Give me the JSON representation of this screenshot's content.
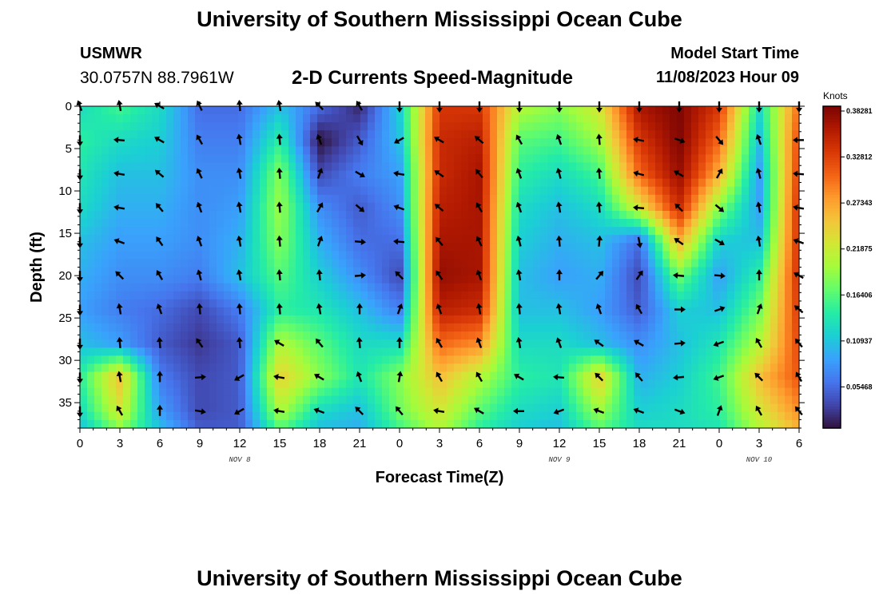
{
  "header": {
    "title": "University of Southern Mississippi Ocean Cube",
    "station": "USMWR",
    "coords": "30.0757N  88.7961W",
    "subtitle": "2-D Currents Speed-Magnitude",
    "model_start_label": "Model Start Time",
    "model_start_time": "11/08/2023 Hour 09"
  },
  "footer": {
    "title": "University of Southern Mississippi Ocean Cube"
  },
  "colors": {
    "scale": [
      "#30123b",
      "#4145ab",
      "#4675ed",
      "#39a2fc",
      "#1bcfd4",
      "#24eca6",
      "#61fc6c",
      "#a4fc3b",
      "#d1e834",
      "#f3c63a",
      "#fe9b2d",
      "#f36315",
      "#d93806",
      "#b11901",
      "#7a0403"
    ],
    "arrow": "#000000"
  },
  "chart_data": {
    "type": "heatmap",
    "title": "2-D Currents Speed-Magnitude",
    "xlabel": "Forecast Time(Z)",
    "ylabel": "Depth (ft)",
    "colorbar_label": "Knots",
    "x_hours": [
      0,
      3,
      6,
      9,
      12,
      15,
      18,
      21,
      24,
      27,
      30,
      33,
      36,
      39,
      42,
      45,
      48,
      51,
      54
    ],
    "x_tick_labels": [
      "0",
      "3",
      "6",
      "9",
      "12",
      "15",
      "18",
      "21",
      "0",
      "3",
      "6",
      "9",
      "12",
      "15",
      "18",
      "21",
      "0",
      "3",
      "6"
    ],
    "date_labels": [
      {
        "hour": 12,
        "label": "NOV 8"
      },
      {
        "hour": 36,
        "label": "NOV 9"
      },
      {
        "hour": 51,
        "label": "NOV 10"
      }
    ],
    "xlim": [
      0,
      54
    ],
    "depths": [
      0,
      4,
      8,
      12,
      16,
      20,
      24,
      28,
      32,
      36,
      38
    ],
    "y_ticks": [
      0,
      5,
      10,
      15,
      20,
      25,
      30,
      35
    ],
    "ylim": [
      0,
      38
    ],
    "colorbar_ticks": [
      "0.38281",
      "0.32812",
      "0.27343",
      "0.21875",
      "0.16406",
      "0.10937",
      "0.05468"
    ],
    "colorbar_range": [
      0.0,
      0.38281
    ],
    "speed_grid": [
      [
        0.12,
        0.15,
        0.12,
        0.05,
        0.05,
        0.1,
        0.05,
        0.01,
        0.11,
        0.33,
        0.33,
        0.2,
        0.18,
        0.22,
        0.36,
        0.38,
        0.33,
        0.12,
        0.3
      ],
      [
        0.14,
        0.12,
        0.11,
        0.06,
        0.06,
        0.14,
        0.0,
        0.04,
        0.1,
        0.34,
        0.35,
        0.16,
        0.15,
        0.19,
        0.33,
        0.38,
        0.3,
        0.1,
        0.32
      ],
      [
        0.13,
        0.1,
        0.1,
        0.07,
        0.07,
        0.18,
        0.03,
        0.06,
        0.08,
        0.34,
        0.36,
        0.14,
        0.12,
        0.15,
        0.3,
        0.37,
        0.26,
        0.08,
        0.33
      ],
      [
        0.12,
        0.09,
        0.09,
        0.07,
        0.08,
        0.19,
        0.07,
        0.04,
        0.07,
        0.35,
        0.36,
        0.12,
        0.1,
        0.12,
        0.22,
        0.34,
        0.18,
        0.08,
        0.34
      ],
      [
        0.1,
        0.08,
        0.08,
        0.07,
        0.09,
        0.18,
        0.09,
        0.05,
        0.05,
        0.36,
        0.36,
        0.11,
        0.09,
        0.1,
        0.05,
        0.26,
        0.11,
        0.1,
        0.34
      ],
      [
        0.09,
        0.07,
        0.07,
        0.06,
        0.1,
        0.16,
        0.11,
        0.07,
        0.03,
        0.37,
        0.36,
        0.1,
        0.08,
        0.09,
        0.03,
        0.17,
        0.08,
        0.14,
        0.34
      ],
      [
        0.08,
        0.06,
        0.05,
        0.03,
        0.06,
        0.14,
        0.13,
        0.1,
        0.06,
        0.35,
        0.34,
        0.1,
        0.1,
        0.08,
        0.04,
        0.11,
        0.1,
        0.17,
        0.33
      ],
      [
        0.1,
        0.08,
        0.04,
        0.02,
        0.04,
        0.2,
        0.16,
        0.12,
        0.12,
        0.3,
        0.28,
        0.12,
        0.12,
        0.1,
        0.07,
        0.1,
        0.13,
        0.2,
        0.32
      ],
      [
        0.14,
        0.25,
        0.06,
        0.03,
        0.04,
        0.24,
        0.18,
        0.13,
        0.18,
        0.25,
        0.2,
        0.14,
        0.13,
        0.24,
        0.09,
        0.11,
        0.15,
        0.25,
        0.31
      ],
      [
        0.12,
        0.22,
        0.08,
        0.03,
        0.04,
        0.2,
        0.12,
        0.1,
        0.17,
        0.22,
        0.16,
        0.12,
        0.11,
        0.19,
        0.11,
        0.12,
        0.14,
        0.22,
        0.28
      ],
      [
        0.1,
        0.18,
        0.1,
        0.04,
        0.04,
        0.16,
        0.1,
        0.09,
        0.15,
        0.2,
        0.14,
        0.11,
        0.1,
        0.16,
        0.12,
        0.12,
        0.13,
        0.2,
        0.26
      ]
    ],
    "arrow_depths": [
      0,
      4,
      8,
      12,
      16,
      20,
      24,
      28,
      32,
      36
    ],
    "arrow_directions_deg": [
      [
        160,
        170,
        120,
        155,
        175,
        170,
        135,
        150,
        0,
        0,
        0,
        0,
        0,
        0,
        0,
        0,
        0,
        0,
        0
      ],
      [
        0,
        95,
        120,
        150,
        170,
        175,
        160,
        330,
        60,
        120,
        130,
        150,
        160,
        175,
        100,
        290,
        320,
        160,
        90
      ],
      [
        0,
        100,
        130,
        155,
        170,
        175,
        200,
        300,
        100,
        125,
        140,
        160,
        165,
        175,
        105,
        120,
        210,
        165,
        95
      ],
      [
        0,
        100,
        140,
        160,
        170,
        175,
        210,
        310,
        110,
        130,
        150,
        160,
        170,
        175,
        95,
        135,
        310,
        170,
        100
      ],
      [
        0,
        110,
        145,
        160,
        170,
        175,
        200,
        275,
        95,
        140,
        155,
        165,
        175,
        185,
        350,
        125,
        300,
        170,
        110
      ],
      [
        0,
        135,
        150,
        165,
        170,
        175,
        175,
        265,
        135,
        145,
        160,
        170,
        180,
        220,
        215,
        95,
        275,
        180,
        120
      ],
      [
        0,
        170,
        160,
        175,
        175,
        175,
        170,
        180,
        200,
        160,
        170,
        175,
        170,
        160,
        150,
        270,
        250,
        200,
        130
      ],
      [
        0,
        175,
        175,
        145,
        175,
        120,
        140,
        175,
        180,
        150,
        160,
        170,
        160,
        125,
        120,
        265,
        70,
        150,
        140
      ],
      [
        0,
        170,
        180,
        265,
        60,
        100,
        120,
        160,
        190,
        150,
        150,
        120,
        95,
        135,
        140,
        85,
        70,
        135,
        150
      ],
      [
        0,
        150,
        180,
        280,
        60,
        100,
        110,
        135,
        140,
        100,
        120,
        90,
        70,
        110,
        110,
        290,
        200,
        150,
        140
      ]
    ]
  }
}
